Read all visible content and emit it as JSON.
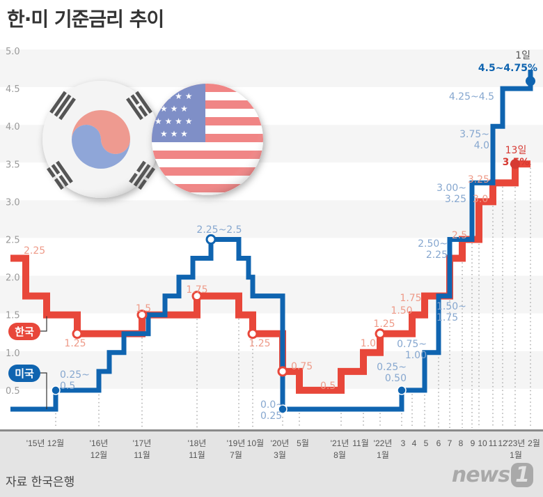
{
  "title": "한·미 기준금리 추이",
  "source": "자료 한국은행",
  "logo": "news1",
  "colors": {
    "korea": "#e8473a",
    "korea_label": "#ee9a88",
    "us": "#0f64b0",
    "us_label": "#86a7cf",
    "korea_emph": "#d63a33"
  },
  "chart_data": {
    "type": "line",
    "step": true,
    "title": "한·미 기준금리 추이",
    "ylim": [
      0,
      5.0
    ],
    "y_ticks": [
      "0.5",
      "1.0",
      "1.5",
      "2.0",
      "2.5",
      "3.0",
      "3.5",
      "4.0",
      "4.5",
      "5.0"
    ],
    "grid": "alternating bands",
    "x_ticks": [
      {
        "key": "2015-12",
        "l1": "'15년 12월",
        "l2": ""
      },
      {
        "key": "2016-12",
        "l1": "'16년",
        "l2": "12월"
      },
      {
        "key": "2017-11",
        "l1": "'17년",
        "l2": "11월"
      },
      {
        "key": "2018-11",
        "l1": "'18년",
        "l2": "11월"
      },
      {
        "key": "2019-07",
        "l1": "'19년",
        "l2": "7월"
      },
      {
        "key": "2019-10",
        "l1": "10월",
        "l2": ""
      },
      {
        "key": "2020-03",
        "l1": "'20년",
        "l2": "3월"
      },
      {
        "key": "2020-05",
        "l1": "5월",
        "l2": ""
      },
      {
        "key": "2021-08",
        "l1": "'21년",
        "l2": "8월"
      },
      {
        "key": "2021-11",
        "l1": "11월",
        "l2": ""
      },
      {
        "key": "2022-01",
        "l1": "'22년",
        "l2": "1월"
      },
      {
        "key": "2022-03",
        "l1": "3",
        "l2": ""
      },
      {
        "key": "2022-04",
        "l1": "4",
        "l2": ""
      },
      {
        "key": "2022-05",
        "l1": "5",
        "l2": ""
      },
      {
        "key": "2022-06",
        "l1": "6",
        "l2": ""
      },
      {
        "key": "2022-07",
        "l1": "7",
        "l2": ""
      },
      {
        "key": "2022-08",
        "l1": "8",
        "l2": ""
      },
      {
        "key": "2022-09",
        "l1": "9",
        "l2": ""
      },
      {
        "key": "2022-10",
        "l1": "10",
        "l2": ""
      },
      {
        "key": "2022-11",
        "l1": "11",
        "l2": ""
      },
      {
        "key": "2022-12",
        "l1": "12",
        "l2": ""
      },
      {
        "key": "2023-01",
        "l1": "'23년",
        "l2": "1월"
      },
      {
        "key": "2023-02",
        "l1": "2월",
        "l2": ""
      }
    ],
    "series": [
      {
        "name": "한국",
        "points": [
          [
            "start",
            2.25
          ],
          [
            "2015-03",
            1.75
          ],
          [
            "2015-06",
            1.5
          ],
          [
            "2016-06",
            1.25
          ],
          [
            "2017-11",
            1.5
          ],
          [
            "2018-11",
            1.75
          ],
          [
            "2019-07",
            1.5
          ],
          [
            "2019-10",
            1.25
          ],
          [
            "2020-03",
            0.75
          ],
          [
            "2020-05",
            0.5
          ],
          [
            "2021-08",
            0.75
          ],
          [
            "2021-11",
            1.0
          ],
          [
            "2022-01",
            1.25
          ],
          [
            "2022-04",
            1.5
          ],
          [
            "2022-05",
            1.75
          ],
          [
            "2022-07",
            2.25
          ],
          [
            "2022-08",
            2.5
          ],
          [
            "2022-10",
            3.0
          ],
          [
            "2022-11",
            3.25
          ],
          [
            "2023-01",
            3.5
          ],
          [
            "end",
            3.5
          ]
        ]
      },
      {
        "name": "미국",
        "points": [
          [
            "start",
            0.25
          ],
          [
            "2015-12",
            0.5
          ],
          [
            "2016-12",
            0.75
          ],
          [
            "2017-03",
            1.0
          ],
          [
            "2017-06",
            1.25
          ],
          [
            "2017-12",
            1.5
          ],
          [
            "2018-03",
            1.75
          ],
          [
            "2018-06",
            2.0
          ],
          [
            "2018-09",
            2.25
          ],
          [
            "2018-12",
            2.5
          ],
          [
            "2019-07",
            2.25
          ],
          [
            "2019-09",
            2.0
          ],
          [
            "2019-10",
            1.75
          ],
          [
            "2020-03",
            0.25
          ],
          [
            "2022-03",
            0.5
          ],
          [
            "2022-05",
            1.0
          ],
          [
            "2022-06",
            1.75
          ],
          [
            "2022-07",
            2.5
          ],
          [
            "2022-09",
            3.25
          ],
          [
            "2022-11",
            4.0
          ],
          [
            "2022-12",
            4.5
          ],
          [
            "2023-02",
            4.75
          ]
        ]
      }
    ],
    "annotations": [
      {
        "series": "한국",
        "text": [
          "2.25"
        ]
      },
      {
        "series": "한국",
        "text": [
          "1.25"
        ]
      },
      {
        "series": "한국",
        "text": [
          "1.5"
        ]
      },
      {
        "series": "한국",
        "text": [
          "1.75"
        ]
      },
      {
        "series": "한국",
        "text": [
          "1.25"
        ]
      },
      {
        "series": "한국",
        "text": [
          "0.75"
        ]
      },
      {
        "series": "한국",
        "text": [
          "0.5"
        ]
      },
      {
        "series": "한국",
        "text": [
          "1.0"
        ]
      },
      {
        "series": "한국",
        "text": [
          "1.25"
        ]
      },
      {
        "series": "한국",
        "text": [
          "1.50"
        ]
      },
      {
        "series": "한국",
        "text": [
          "1.75"
        ]
      },
      {
        "series": "한국",
        "text": [
          "2.5"
        ]
      },
      {
        "series": "한국",
        "text": [
          "3.0"
        ]
      },
      {
        "series": "한국",
        "text": [
          "3.25"
        ]
      },
      {
        "series": "한국",
        "text": [
          "13일"
        ],
        "emph": true
      },
      {
        "series": "한국",
        "text": [
          "3.5%"
        ],
        "emph": true,
        "bold": true
      },
      {
        "series": "미국",
        "text": [
          "0.25~",
          "0.5"
        ]
      },
      {
        "series": "미국",
        "text": [
          "2.25~2.5"
        ]
      },
      {
        "series": "미국",
        "text": [
          "0.0~",
          "0.25"
        ]
      },
      {
        "series": "미국",
        "text": [
          "0.25~",
          "0.50"
        ]
      },
      {
        "series": "미국",
        "text": [
          "0.75~",
          "1.00"
        ]
      },
      {
        "series": "미국",
        "text": [
          "1.50~",
          "1.75"
        ]
      },
      {
        "series": "미국",
        "text": [
          "2.50~",
          "2.25"
        ]
      },
      {
        "series": "미국",
        "text": [
          "3.00~",
          "3.25"
        ]
      },
      {
        "series": "미국",
        "text": [
          "3.75~",
          "4.0"
        ]
      },
      {
        "series": "미국",
        "text": [
          "4.25~4.5"
        ]
      },
      {
        "series": "미국",
        "text": [
          "1일"
        ],
        "emph": true,
        "dark": true
      },
      {
        "series": "미국",
        "text": [
          "4.5~4.75%"
        ],
        "emph": true,
        "bold": true
      }
    ],
    "legend": [
      {
        "name": "한국",
        "color": "#e8473a"
      },
      {
        "name": "미국",
        "color": "#0f64b0"
      }
    ],
    "legend_position": "left"
  }
}
